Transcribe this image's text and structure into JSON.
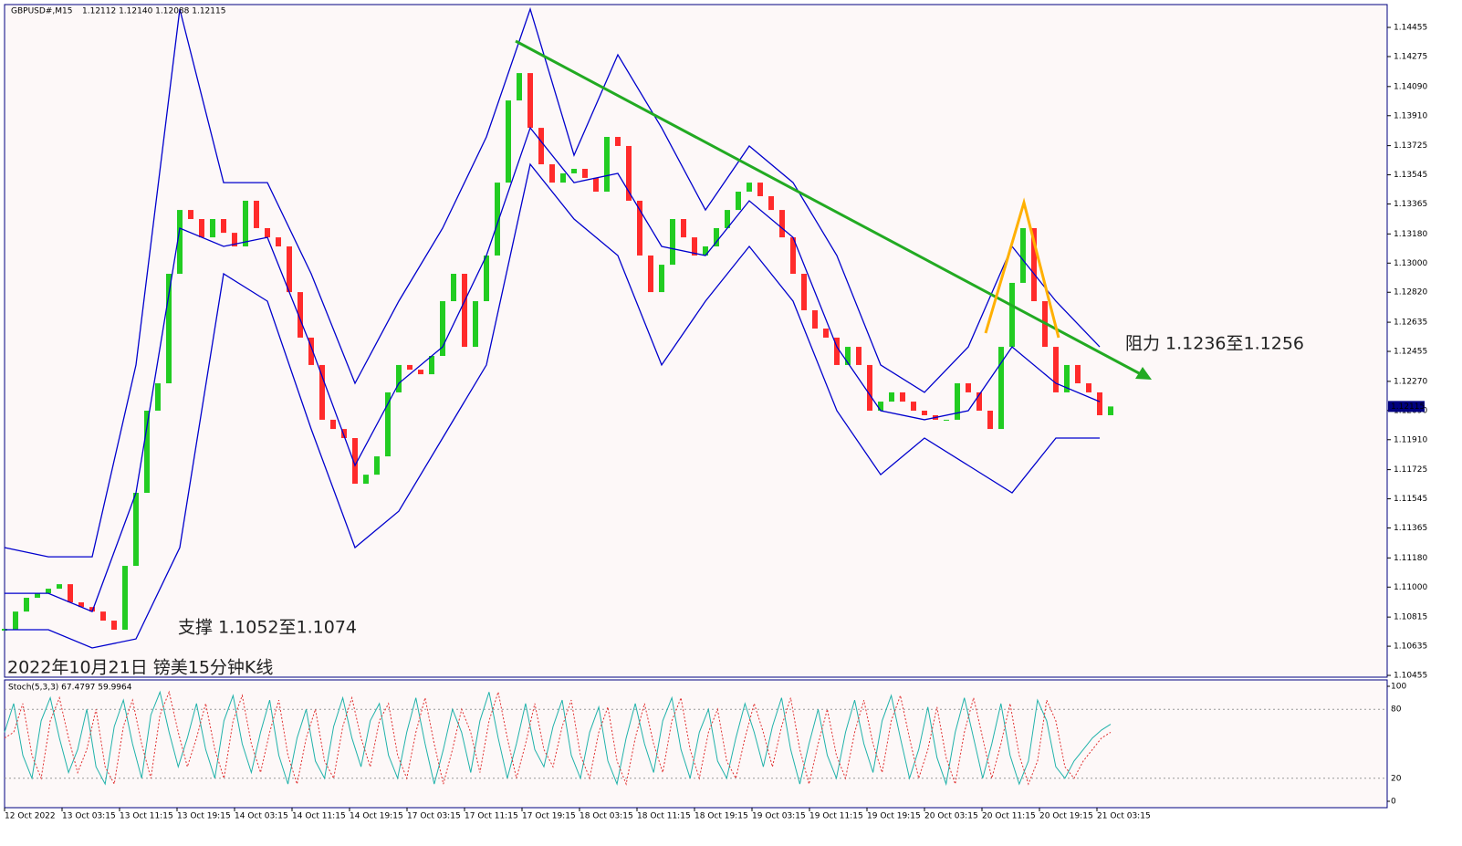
{
  "chart_data": [
    {
      "type": "candlestick",
      "symbol": "GBPUSD#,M15",
      "quote": "1.12112 1.12140 1.12088 1.12115",
      "current_price": 1.12115,
      "annotations": [
        "阻力 1.1236至1.1256",
        "支撑 1.1052至1.1074",
        "2022年10月21日 镑美15分钟K线"
      ],
      "xlim": [
        0,
        101
      ],
      "xticks": [
        {
          "value": 0,
          "label": "12 Oct 2022"
        },
        {
          "value": 5.25,
          "label": "13 Oct 03:15"
        },
        {
          "value": 10.5,
          "label": "13 Oct 11:15"
        },
        {
          "value": 15.75,
          "label": "13 Oct 19:15"
        },
        {
          "value": 21,
          "label": "14 Oct 03:15"
        },
        {
          "value": 26.25,
          "label": "14 Oct 11:15"
        },
        {
          "value": 31.5,
          "label": "14 Oct 19:15"
        },
        {
          "value": 36.75,
          "label": "17 Oct 03:15"
        },
        {
          "value": 42,
          "label": "17 Oct 11:15"
        },
        {
          "value": 47.25,
          "label": "17 Oct 19:15"
        },
        {
          "value": 52.5,
          "label": "18 Oct 03:15"
        },
        {
          "value": 57.75,
          "label": "18 Oct 11:15"
        },
        {
          "value": 63,
          "label": "18 Oct 19:15"
        },
        {
          "value": 68.25,
          "label": "19 Oct 03:15"
        },
        {
          "value": 73.5,
          "label": "19 Oct 11:15"
        },
        {
          "value": 78.75,
          "label": "19 Oct 19:15"
        },
        {
          "value": 84,
          "label": "20 Oct 03:15"
        },
        {
          "value": 89.25,
          "label": "20 Oct 11:15"
        },
        {
          "value": 94.5,
          "label": "20 Oct 19:15"
        },
        {
          "value": 99.75,
          "label": "21 Oct 03:15"
        }
      ],
      "ylim": [
        1.10444,
        1.14596
      ],
      "yticks": [
        1.14455,
        1.14275,
        {
          "value": 1.1409,
          "label": "1.14090"
        },
        {
          "value": 1.1391,
          "label": "1.13910"
        },
        1.13725,
        1.13545,
        1.13365,
        {
          "value": 1.1318,
          "label": "1.13180"
        },
        {
          "value": 1.13,
          "label": "1.13000"
        },
        {
          "value": 1.1282,
          "label": "1.12820"
        },
        1.12635,
        1.12455,
        {
          "value": 1.1227,
          "label": "1.12270"
        },
        {
          "value": 1.1209,
          "label": "1.12090"
        },
        {
          "value": 1.1191,
          "label": "1.11910"
        },
        1.11725,
        1.11545,
        1.11365,
        {
          "value": 1.1118,
          "label": "1.11180"
        },
        {
          "value": 1.11,
          "label": "1.11000"
        },
        1.10815,
        1.10635,
        1.10455
      ],
      "candles": {
        "color": "#22cc22",
        "down_color": "#ff2b2b",
        "values": [
          1.10737,
          1.10849,
          1.10934,
          1.10962,
          1.1099,
          1.11018,
          1.10906,
          1.10877,
          1.10849,
          1.10793,
          1.10737,
          1.11131,
          1.11582,
          1.12089,
          1.12258,
          1.12934,
          1.13328,
          1.13272,
          1.13159,
          1.13272,
          1.13187,
          1.13103,
          1.13385,
          1.13216,
          1.13159,
          1.13103,
          1.12821,
          1.1254,
          1.12371,
          1.12033,
          1.11976,
          1.1192,
          1.11638,
          1.11694,
          1.11807,
          1.12202,
          1.12371,
          1.12342,
          1.12314,
          1.12427,
          1.12765,
          1.12934,
          1.12483,
          1.12765,
          1.13047,
          1.13497,
          1.14004,
          1.14173,
          1.13835,
          1.1361,
          1.13497,
          1.13554,
          1.13582,
          1.13526,
          1.13441,
          1.13779,
          1.13723,
          1.13385,
          1.13047,
          1.12821,
          1.1299,
          1.13272,
          1.13159,
          1.13047,
          1.13103,
          1.13216,
          1.13328,
          1.13441,
          1.13497,
          1.13413,
          1.13328,
          1.13159,
          1.12934,
          1.12709,
          1.12596,
          1.1254,
          1.12371,
          1.12483,
          1.12371,
          1.12089,
          1.12145,
          1.12202,
          1.12145,
          1.12089,
          1.12061,
          1.12033,
          1.12033,
          1.12258,
          1.12202,
          1.12089,
          1.11976,
          1.12483,
          1.12878,
          1.13216,
          1.12765,
          1.12483,
          1.12202,
          1.12371,
          1.12258,
          1.12202,
          1.12061,
          1.12115
        ]
      },
      "series": [
        {
          "color": "#0000cd",
          "x": [
            0,
            4,
            8,
            12,
            16,
            20,
            24,
            28,
            32,
            36,
            40,
            44,
            48,
            52,
            56,
            60,
            64,
            68,
            72,
            76,
            80,
            84,
            88,
            92,
            96,
            100
          ],
          "values": [
            1.11244,
            1.11187,
            1.11187,
            1.12371,
            1.14568,
            1.13497,
            1.13497,
            1.12934,
            1.12258,
            1.12765,
            1.13216,
            1.13779,
            1.14568,
            1.13666,
            1.14286,
            1.13835,
            1.13328,
            1.13723,
            1.13497,
            1.13047,
            1.12371,
            1.12202,
            1.12483,
            1.13103,
            1.12765,
            1.12483
          ]
        },
        {
          "color": "#0000cd",
          "x": [
            0,
            4,
            8,
            12,
            16,
            20,
            24,
            28,
            32,
            36,
            40,
            44,
            48,
            52,
            56,
            60,
            64,
            68,
            72,
            76,
            80,
            84,
            88,
            92,
            96,
            100
          ],
          "values": [
            1.10962,
            1.10962,
            1.10849,
            1.11582,
            1.13216,
            1.13103,
            1.13159,
            1.12483,
            1.11751,
            1.12258,
            1.12483,
            1.13047,
            1.13835,
            1.13497,
            1.13554,
            1.13103,
            1.13047,
            1.13385,
            1.13159,
            1.12483,
            1.12089,
            1.12033,
            1.12089,
            1.12483,
            1.12258,
            1.12145
          ]
        },
        {
          "color": "#0000cd",
          "x": [
            0,
            4,
            8,
            12,
            16,
            20,
            24,
            28,
            32,
            36,
            40,
            44,
            48,
            52,
            56,
            60,
            64,
            68,
            72,
            76,
            80,
            84,
            88,
            92,
            96,
            100
          ],
          "values": [
            1.10737,
            1.10737,
            1.10624,
            1.1068,
            1.11244,
            1.12934,
            1.12765,
            1.11976,
            1.11244,
            1.11469,
            1.1192,
            1.12371,
            1.1361,
            1.13272,
            1.13047,
            1.12371,
            1.12765,
            1.13103,
            1.12765,
            1.12089,
            1.11694,
            1.1192,
            1.11751,
            1.11582,
            1.1192,
            1.1192
          ]
        }
      ]
    },
    {
      "type": "line",
      "label": "Stoch(5,3,3) 67.4797 59.9964",
      "xlim": [
        0,
        121
      ],
      "ylim": [
        0,
        100
      ],
      "yticks": [
        0,
        20,
        80,
        100
      ],
      "series": [
        {
          "color": "#20b2aa",
          "style": "solid",
          "values": [
            60,
            85,
            40,
            20,
            70,
            90,
            55,
            25,
            45,
            80,
            30,
            15,
            65,
            88,
            50,
            20,
            75,
            95,
            60,
            30,
            55,
            85,
            45,
            20,
            70,
            92,
            50,
            25,
            60,
            88,
            40,
            15,
            55,
            80,
            35,
            20,
            65,
            90,
            55,
            30,
            70,
            85,
            40,
            20,
            60,
            90,
            50,
            15,
            45,
            80,
            60,
            25,
            70,
            95,
            55,
            20,
            50,
            85,
            45,
            30,
            65,
            88,
            40,
            20,
            60,
            82,
            35,
            15,
            55,
            85,
            50,
            25,
            70,
            90,
            45,
            20,
            60,
            80,
            35,
            20,
            55,
            85,
            60,
            30,
            65,
            90,
            45,
            15,
            50,
            80,
            40,
            20,
            60,
            88,
            50,
            25,
            70,
            92,
            55,
            20,
            45,
            82,
            38,
            15,
            60,
            90,
            55,
            20,
            50,
            85,
            40,
            15,
            35,
            88,
            70,
            30,
            20,
            35,
            45,
            55,
            62,
            67
          ]
        },
        {
          "color": "#e03030",
          "style": "dotted",
          "values": [
            55,
            60,
            85,
            40,
            20,
            70,
            90,
            55,
            25,
            45,
            80,
            30,
            15,
            65,
            88,
            50,
            20,
            75,
            95,
            60,
            30,
            55,
            85,
            45,
            20,
            70,
            92,
            50,
            25,
            60,
            88,
            40,
            15,
            55,
            80,
            35,
            20,
            65,
            90,
            55,
            30,
            70,
            85,
            40,
            20,
            60,
            90,
            50,
            15,
            45,
            80,
            60,
            25,
            70,
            95,
            55,
            20,
            50,
            85,
            45,
            30,
            65,
            88,
            40,
            20,
            60,
            82,
            35,
            15,
            55,
            85,
            50,
            25,
            70,
            90,
            45,
            20,
            60,
            80,
            35,
            20,
            55,
            85,
            60,
            30,
            65,
            90,
            45,
            15,
            50,
            80,
            40,
            20,
            60,
            88,
            50,
            25,
            70,
            92,
            55,
            20,
            45,
            82,
            38,
            15,
            60,
            90,
            55,
            20,
            50,
            85,
            40,
            15,
            35,
            88,
            70,
            30,
            20,
            35,
            45,
            55,
            60
          ]
        }
      ]
    }
  ]
}
